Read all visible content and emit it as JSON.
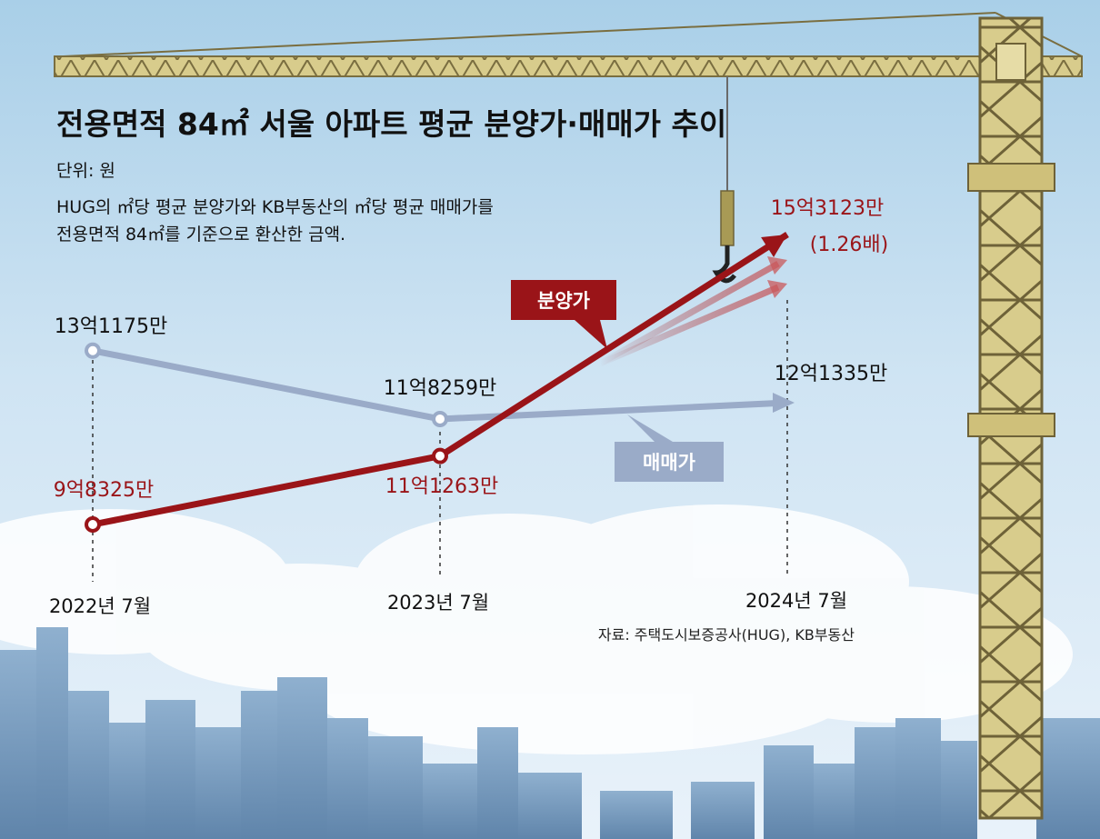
{
  "chart_data": {
    "type": "line",
    "title": "전용면적 84㎡ 서울 아파트 평균 분양가·매매가 추이",
    "unit": "단위: 원",
    "note_lines": [
      "HUG의 ㎡당 평균 분양가와 KB부동산의 ㎡당 평균 매매가를",
      "전용면적 84㎡를 기준으로 환산한 금액."
    ],
    "categories": [
      "2022년 7월",
      "2023년 7월",
      "2024년 7월"
    ],
    "series": [
      {
        "name": "분양가",
        "color": "#9a1418",
        "values": [
          983250000,
          1112630000,
          1531230000
        ],
        "labels": [
          "9억8325만",
          "11억1263만",
          "15억3123만"
        ],
        "annotation": "(1.26배)"
      },
      {
        "name": "매매가",
        "color": "#9aabc8",
        "values": [
          1311750000,
          1182590000,
          1213350000
        ],
        "labels": [
          "13억1175만",
          "11억8259만",
          "12억1335만"
        ]
      }
    ],
    "source": "자료: 주택도시보증공사(HUG), KB부동산",
    "grid": false,
    "legend": "inline"
  }
}
